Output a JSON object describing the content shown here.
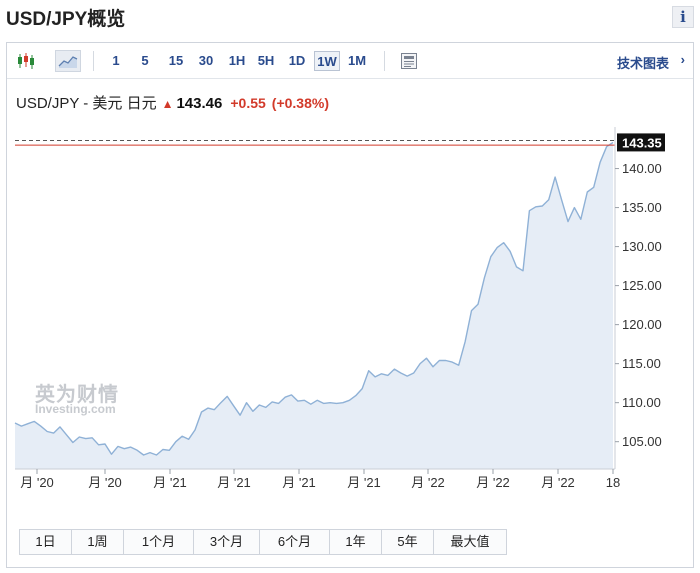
{
  "page": {
    "title": "USD/JPY概览",
    "info_icon": "i"
  },
  "toolbar": {
    "intervals": [
      {
        "label": "1",
        "active": false
      },
      {
        "label": "5",
        "active": false
      },
      {
        "label": "15",
        "active": false
      },
      {
        "label": "30",
        "active": false
      },
      {
        "label": "1H",
        "active": false
      },
      {
        "label": "5H",
        "active": false
      },
      {
        "label": "1D",
        "active": false
      },
      {
        "label": "1W",
        "active": true
      },
      {
        "label": "1M",
        "active": false
      }
    ],
    "tech_chart_label": "技术图表",
    "tech_chart_arrow": "›"
  },
  "quote": {
    "pair": "USD/JPY - 美元 日元",
    "arrow": "▲",
    "price": "143.46",
    "change": "+0.55",
    "change_pct": "(+0.38%)"
  },
  "watermark": {
    "cn": "英为财情",
    "en": "Investing.com"
  },
  "range_buttons": [
    "1日",
    "1周",
    "1个月",
    "3个月",
    "6个月",
    "1年",
    "5年",
    "最大值"
  ],
  "colors": {
    "line": "#8fb1d6",
    "area": "#e6edf6",
    "accent_red": "#d23a2a",
    "link_blue": "#2a4b8d",
    "last_price_bg": "#111111"
  },
  "chart_data": {
    "type": "area",
    "ylim": [
      101.5,
      144.3
    ],
    "y_ticks": [
      "105.00",
      "110.00",
      "115.00",
      "120.00",
      "125.00",
      "130.00",
      "135.00",
      "140.00"
    ],
    "x_labels": [
      "月 '20",
      "月 '20",
      "月 '21",
      "月 '21",
      "月 '21",
      "月 '21",
      "月 '22",
      "月 '22",
      "月 '22",
      "18"
    ],
    "last_price_label": "143.35",
    "last_price": 143.35,
    "dashed_level": 143.6,
    "red_level": 143.0,
    "grid": false,
    "values": [
      107.4,
      107.0,
      107.3,
      107.6,
      107.0,
      106.3,
      106.1,
      106.9,
      105.9,
      104.9,
      105.6,
      105.4,
      105.5,
      104.6,
      104.7,
      103.4,
      104.4,
      104.1,
      104.3,
      103.9,
      103.3,
      103.6,
      103.3,
      104.0,
      103.9,
      105.0,
      105.7,
      105.3,
      106.5,
      108.8,
      109.3,
      109.1,
      110.0,
      110.8,
      109.6,
      108.4,
      110.0,
      108.9,
      109.7,
      109.4,
      110.1,
      109.9,
      110.7,
      111.0,
      110.2,
      110.3,
      109.8,
      110.3,
      109.9,
      110.0,
      109.9,
      110.0,
      110.3,
      110.9,
      111.8,
      114.1,
      113.3,
      113.7,
      113.5,
      114.3,
      113.8,
      113.4,
      113.8,
      115.0,
      115.7,
      114.6,
      115.4,
      115.4,
      115.2,
      114.8,
      117.8,
      121.8,
      122.6,
      126.0,
      128.7,
      129.9,
      130.5,
      129.4,
      127.4,
      126.9,
      134.6,
      135.1,
      135.2,
      136.0,
      138.9,
      136.0,
      133.2,
      135.0,
      133.5,
      137.0,
      137.6,
      140.8,
      142.8,
      143.35
    ]
  }
}
